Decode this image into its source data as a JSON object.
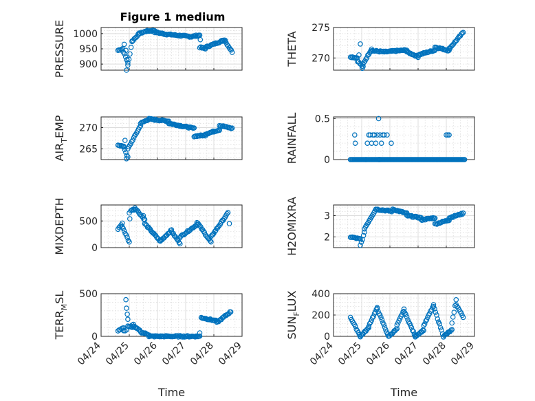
{
  "figure": {
    "title": "Figure 1 medium",
    "marker_color": "#0072BD"
  },
  "chart_data": [
    {
      "type": "scatter",
      "ylabel": "PRESSURE",
      "ylim": [
        880,
        1020
      ],
      "yticks": [
        900,
        950,
        1000
      ],
      "xlim": [
        0,
        5
      ],
      "xticks": [
        "04/24",
        "04/25",
        "04/26",
        "04/27",
        "04/28",
        "04/29"
      ],
      "show_xticklabels": false,
      "xlabel": "",
      "segments": [
        [
          0.0,
          0.15,
          945,
          950
        ],
        [
          0.15,
          0.35,
          950,
          905
        ],
        [
          0.35,
          0.5,
          895,
          975
        ],
        [
          0.5,
          0.75,
          975,
          1000
        ],
        [
          0.75,
          1.0,
          1000,
          1008
        ],
        [
          1.0,
          1.3,
          1008,
          1010
        ],
        [
          1.3,
          1.7,
          1005,
          998
        ],
        [
          1.7,
          2.6,
          998,
          990
        ],
        [
          2.6,
          2.9,
          990,
          995
        ],
        [
          2.9,
          3.1,
          955,
          950
        ],
        [
          3.1,
          3.8,
          955,
          980
        ],
        [
          3.8,
          4.05,
          975,
          940
        ]
      ],
      "extra_points": [
        [
          0.3,
          880
        ],
        [
          0.32,
          915
        ],
        [
          0.28,
          945
        ],
        [
          0.22,
          965
        ],
        [
          2.92,
          980
        ],
        [
          0.6,
          985
        ],
        [
          3.0,
          955
        ],
        [
          3.7,
          975
        ]
      ]
    },
    {
      "type": "scatter",
      "ylabel": "THETA",
      "ylim": [
        268,
        275
      ],
      "yticks": [
        270,
        275
      ],
      "xlim": [
        0,
        5
      ],
      "xticks": [
        "04/24",
        "04/25",
        "04/26",
        "04/27",
        "04/28",
        "04/29"
      ],
      "show_xticklabels": false,
      "xlabel": "",
      "segments": [
        [
          0.0,
          0.25,
          270.2,
          270.0
        ],
        [
          0.25,
          0.45,
          269.5,
          268.5
        ],
        [
          0.45,
          0.75,
          269.0,
          271.5
        ],
        [
          0.75,
          1.2,
          271.2,
          271.0
        ],
        [
          1.2,
          2.0,
          271.0,
          271.3
        ],
        [
          2.0,
          2.4,
          271.0,
          270.2
        ],
        [
          2.4,
          3.0,
          270.5,
          271.3
        ],
        [
          3.0,
          3.5,
          271.8,
          271.2
        ],
        [
          3.5,
          4.0,
          271.5,
          274.2
        ]
      ],
      "extra_points": [
        [
          0.35,
          272.3
        ],
        [
          0.3,
          270.5
        ],
        [
          0.42,
          268.3
        ]
      ]
    },
    {
      "type": "scatter",
      "ylabel": "AIR_TEMP",
      "ylim": [
        262.5,
        272.5
      ],
      "yticks": [
        265,
        270
      ],
      "xlim": [
        0,
        5
      ],
      "xticks": [
        "04/24",
        "04/25",
        "04/26",
        "04/27",
        "04/28",
        "04/29"
      ],
      "show_xticklabels": false,
      "xlabel": "",
      "segments": [
        [
          0.0,
          0.2,
          266.0,
          265.5
        ],
        [
          0.2,
          0.35,
          265.5,
          263.0
        ],
        [
          0.35,
          0.8,
          265.0,
          270.5
        ],
        [
          0.8,
          1.1,
          271.0,
          272.0
        ],
        [
          1.1,
          1.8,
          272.0,
          271.5
        ],
        [
          1.8,
          2.7,
          271.0,
          269.8
        ],
        [
          2.7,
          3.1,
          268.0,
          268.2
        ],
        [
          3.1,
          3.6,
          268.5,
          269.5
        ],
        [
          3.6,
          4.05,
          270.5,
          269.8
        ]
      ],
      "extra_points": [
        [
          0.3,
          262.7
        ],
        [
          0.25,
          267.0
        ]
      ]
    },
    {
      "type": "scatter",
      "ylabel": "RAINFALL",
      "ylim": [
        0,
        0.52
      ],
      "yticks": [
        0,
        0.5
      ],
      "xlim": [
        0,
        5
      ],
      "xticks": [
        "04/24",
        "04/25",
        "04/26",
        "04/27",
        "04/28",
        "04/29"
      ],
      "show_xticklabels": false,
      "xlabel": "",
      "segments": [
        [
          0.0,
          0.55,
          0,
          0
        ],
        [
          0.55,
          1.05,
          0,
          0
        ],
        [
          1.0,
          4.05,
          0,
          0
        ]
      ],
      "extra_points": [
        [
          0.15,
          0.3
        ],
        [
          0.17,
          0.2
        ],
        [
          0.6,
          0.2
        ],
        [
          0.65,
          0.3
        ],
        [
          0.7,
          0.3
        ],
        [
          0.75,
          0.2
        ],
        [
          0.8,
          0.3
        ],
        [
          0.85,
          0.3
        ],
        [
          0.9,
          0.2
        ],
        [
          0.95,
          0.3
        ],
        [
          1.0,
          0.5
        ],
        [
          1.05,
          0.3
        ],
        [
          1.1,
          0.2
        ],
        [
          1.15,
          0.3
        ],
        [
          1.2,
          0.3
        ],
        [
          1.3,
          0.3
        ],
        [
          1.45,
          0.2
        ],
        [
          3.4,
          0.3
        ],
        [
          3.45,
          0.3
        ],
        [
          3.5,
          0.3
        ]
      ]
    },
    {
      "type": "scatter",
      "ylabel": "MIXDEPTH",
      "ylim": [
        0,
        800
      ],
      "yticks": [
        0,
        500
      ],
      "xlim": [
        0,
        5
      ],
      "xticks": [
        "04/24",
        "04/25",
        "04/26",
        "04/27",
        "04/28",
        "04/29"
      ],
      "show_xticklabels": false,
      "xlabel": "",
      "segments": [
        [
          0.0,
          0.15,
          350,
          450
        ],
        [
          0.15,
          0.4,
          400,
          100
        ],
        [
          0.45,
          0.6,
          700,
          720
        ],
        [
          0.6,
          0.95,
          750,
          520
        ],
        [
          0.95,
          1.5,
          450,
          120
        ],
        [
          1.5,
          1.9,
          120,
          330
        ],
        [
          1.9,
          2.2,
          300,
          80
        ],
        [
          2.2,
          2.8,
          200,
          430
        ],
        [
          2.8,
          3.3,
          480,
          100
        ],
        [
          3.3,
          3.9,
          200,
          650
        ]
      ],
      "extra_points": [
        [
          0.4,
          650
        ],
        [
          0.42,
          540
        ],
        [
          0.9,
          600
        ],
        [
          3.95,
          450
        ]
      ]
    },
    {
      "type": "scatter",
      "ylabel": "H2OMIXRA",
      "ylim": [
        1.5,
        3.5
      ],
      "yticks": [
        2,
        3
      ],
      "xlim": [
        0,
        5
      ],
      "xticks": [
        "04/24",
        "04/25",
        "04/26",
        "04/27",
        "04/28",
        "04/29"
      ],
      "show_xticklabels": false,
      "xlabel": "",
      "segments": [
        [
          0.0,
          0.35,
          2.0,
          1.9
        ],
        [
          0.35,
          0.5,
          1.6,
          2.2
        ],
        [
          0.5,
          0.9,
          2.4,
          3.3
        ],
        [
          0.9,
          1.5,
          3.3,
          3.2
        ],
        [
          1.5,
          2.0,
          3.3,
          3.1
        ],
        [
          2.0,
          2.5,
          3.0,
          2.9
        ],
        [
          2.5,
          3.0,
          2.8,
          2.9
        ],
        [
          3.0,
          3.5,
          2.6,
          2.8
        ],
        [
          3.5,
          4.0,
          2.9,
          3.1
        ]
      ],
      "extra_points": []
    },
    {
      "type": "scatter",
      "ylabel": "TERR_MSL",
      "ylim": [
        0,
        500
      ],
      "yticks": [
        0,
        500
      ],
      "xlim": [
        0,
        5
      ],
      "xticks": [
        "04/24",
        "04/25",
        "04/26",
        "04/27",
        "04/28",
        "04/29"
      ],
      "show_xticklabels": true,
      "xlabel": "Time",
      "segments": [
        [
          0.0,
          0.2,
          70,
          100
        ],
        [
          0.2,
          0.3,
          60,
          80
        ],
        [
          0.35,
          0.5,
          120,
          100
        ],
        [
          0.5,
          0.8,
          130,
          60
        ],
        [
          0.8,
          1.1,
          50,
          20
        ],
        [
          1.1,
          2.9,
          0,
          0
        ],
        [
          2.95,
          3.5,
          220,
          180
        ],
        [
          3.5,
          4.0,
          160,
          290
        ]
      ],
      "extra_points": [
        [
          0.28,
          430
        ],
        [
          0.3,
          330
        ],
        [
          0.33,
          260
        ],
        [
          0.35,
          200
        ],
        [
          0.55,
          140
        ],
        [
          2.9,
          40
        ]
      ]
    },
    {
      "type": "scatter",
      "ylabel": "SUN_FLUX",
      "ylim": [
        0,
        400
      ],
      "yticks": [
        0,
        200,
        400
      ],
      "xlim": [
        0,
        5
      ],
      "xticks": [
        "04/24",
        "04/25",
        "04/26",
        "04/27",
        "04/28",
        "04/29"
      ],
      "show_xticklabels": true,
      "xlabel": "Time",
      "segments": [
        [
          0.0,
          0.35,
          180,
          0
        ],
        [
          0.35,
          0.65,
          0,
          80
        ],
        [
          0.65,
          0.95,
          100,
          265
        ],
        [
          0.95,
          1.35,
          260,
          0
        ],
        [
          1.35,
          1.65,
          0,
          70
        ],
        [
          1.65,
          1.9,
          100,
          250
        ],
        [
          1.9,
          2.3,
          240,
          0
        ],
        [
          2.3,
          2.6,
          0,
          60
        ],
        [
          2.6,
          2.95,
          100,
          290
        ],
        [
          2.95,
          3.3,
          280,
          0
        ],
        [
          3.3,
          3.6,
          0,
          60
        ],
        [
          3.6,
          3.75,
          120,
          340
        ],
        [
          3.75,
          4.0,
          300,
          180
        ]
      ],
      "extra_points": []
    }
  ]
}
